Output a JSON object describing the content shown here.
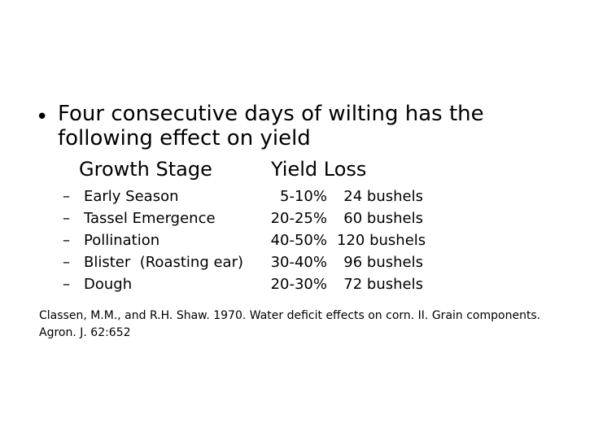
{
  "bullet": {
    "symbol": "•",
    "text": "Four consecutive days of wilting has the following effect on yield"
  },
  "table": {
    "header_stage": "Growth Stage",
    "header_loss": "Yield Loss",
    "rows": [
      {
        "dash": "–",
        "stage": "Early Season",
        "loss": "5-10%",
        "bushels": "24 bushels"
      },
      {
        "dash": "–",
        "stage": "Tassel Emergence",
        "loss": "20-25%",
        "bushels": "60 bushels"
      },
      {
        "dash": "–",
        "stage": "Pollination",
        "loss": "40-50%",
        "bushels": "120 bushels"
      },
      {
        "dash": "–",
        "stage": "Blister  (Roasting ear)",
        "loss": "30-40%",
        "bushels": "96 bushels"
      },
      {
        "dash": "–",
        "stage": "Dough",
        "loss": "20-30%",
        "bushels": "72 bushels"
      }
    ]
  },
  "citation": "Classen, M.M., and R.H. Shaw. 1970. Water deficit effects on corn. II. Grain components. Agron. J. 62:652"
}
